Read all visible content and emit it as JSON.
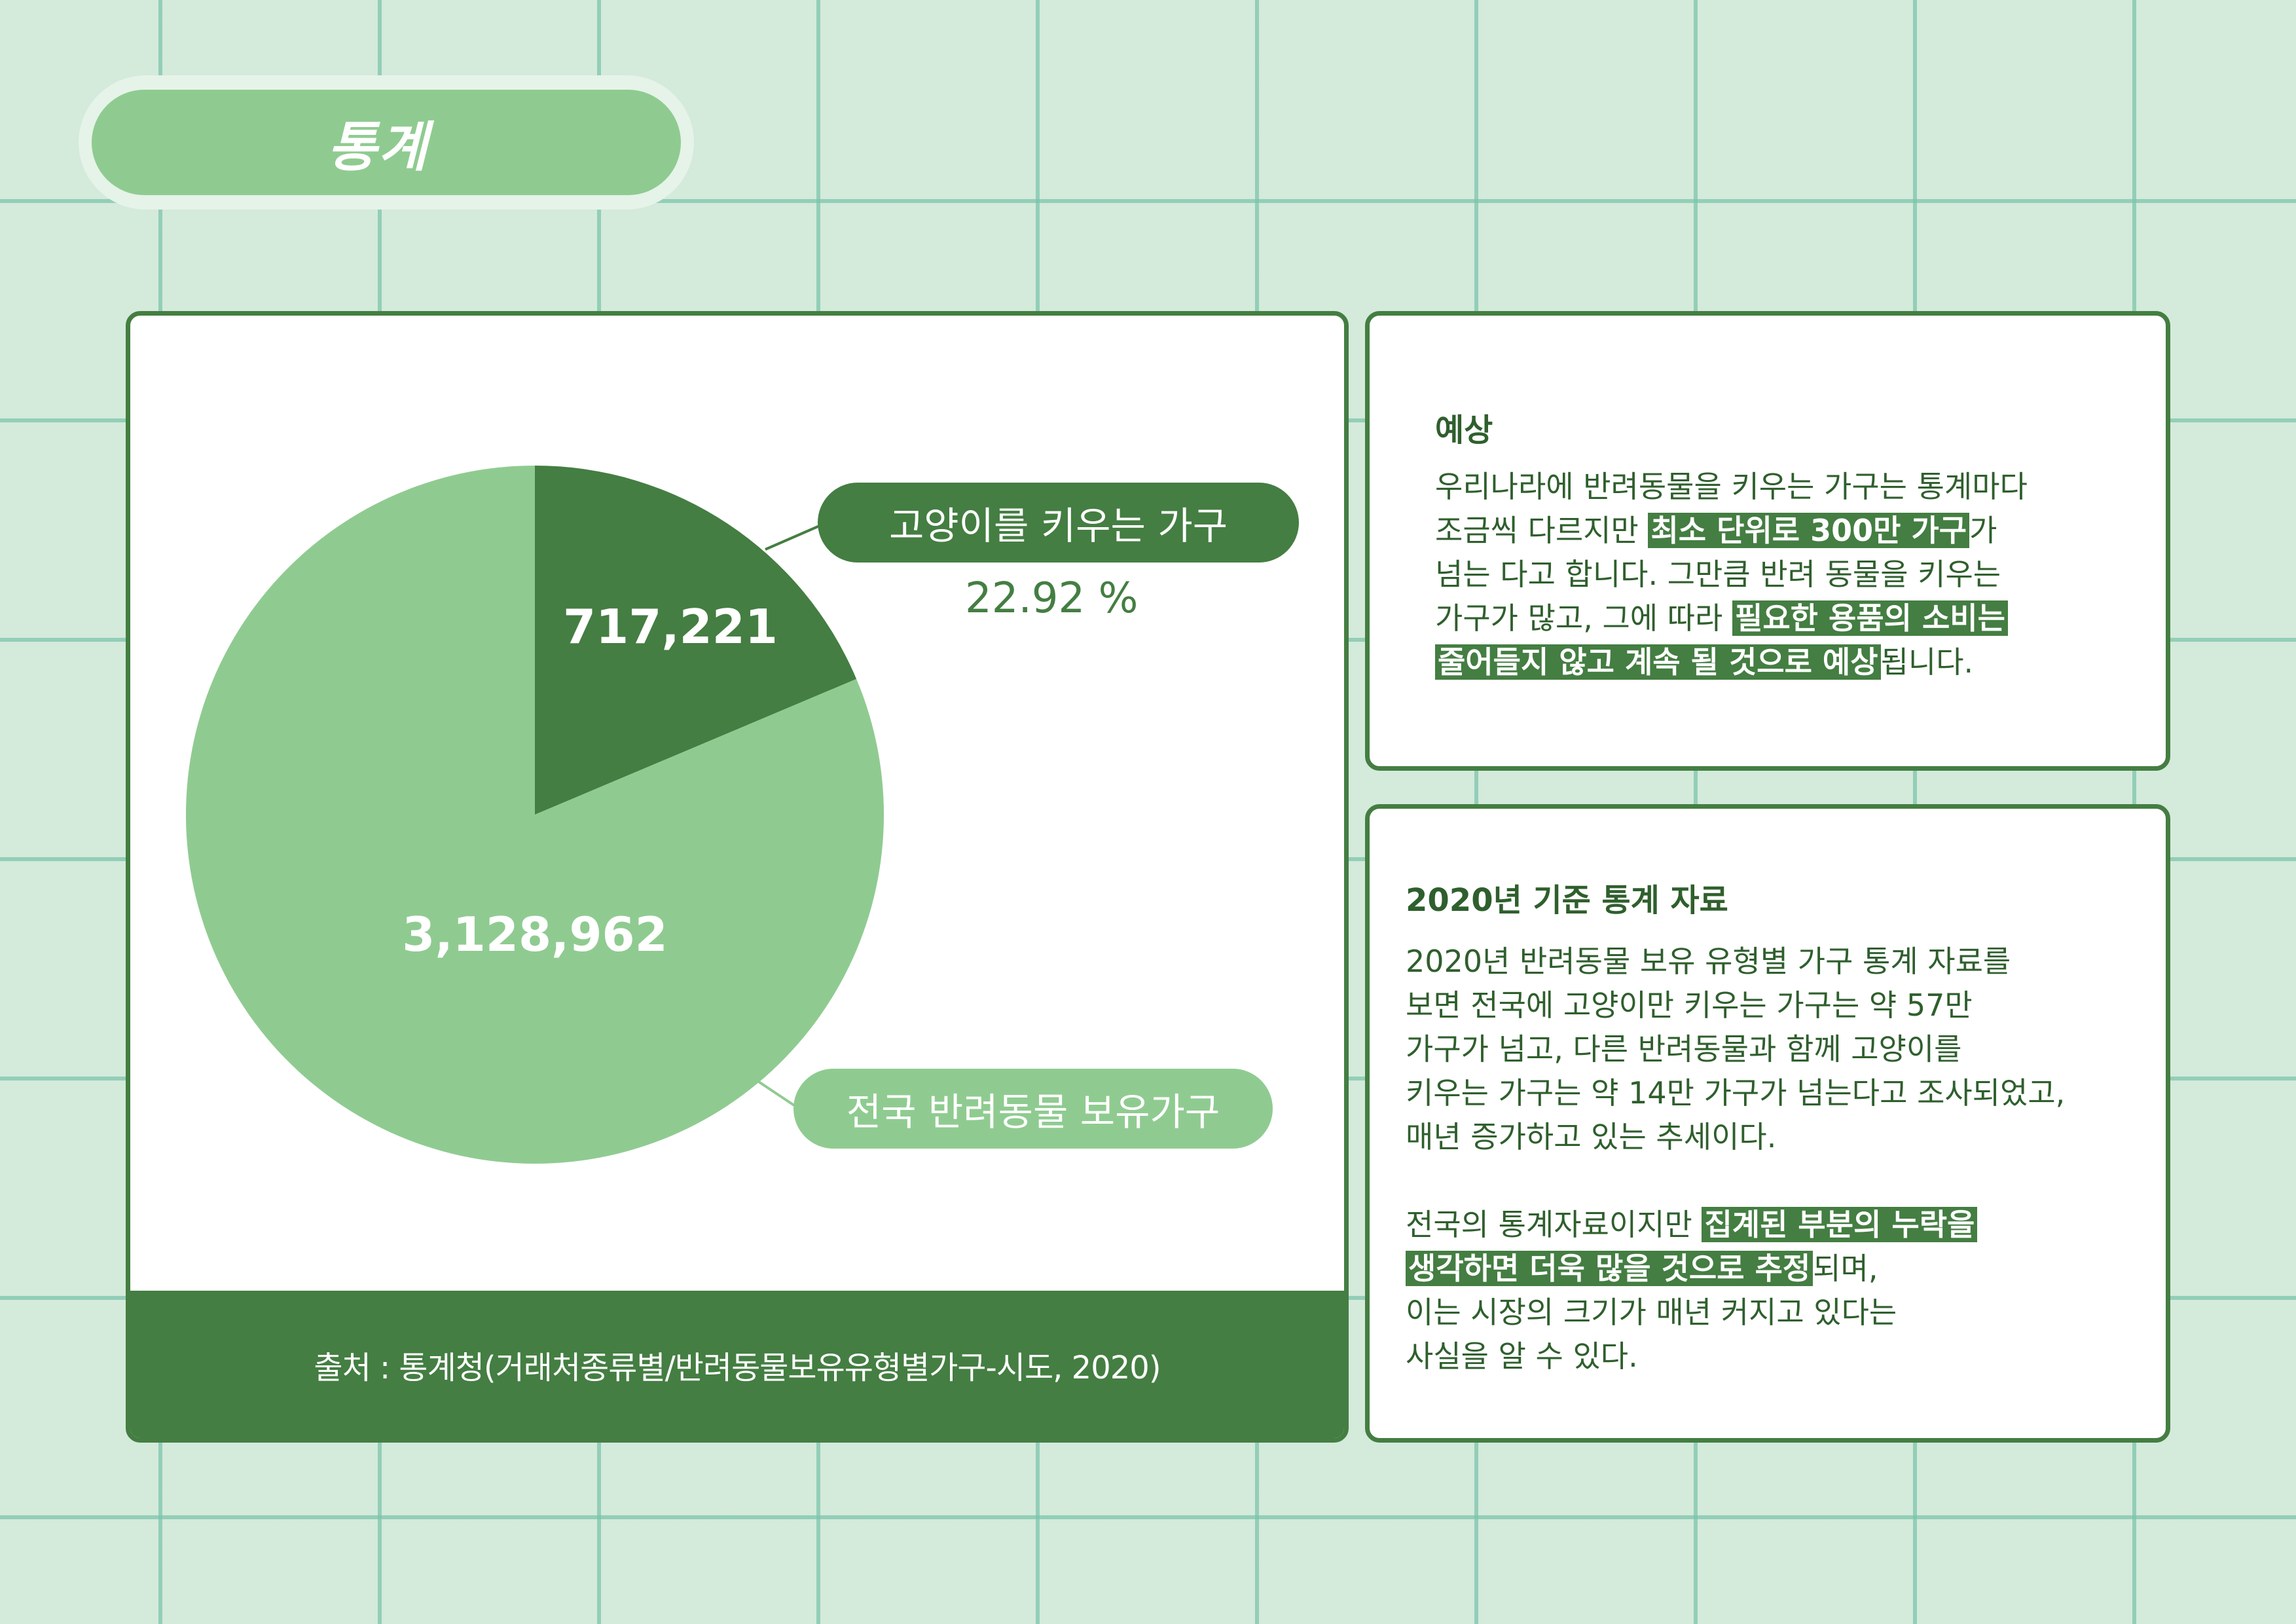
{
  "page": {
    "title": "통계"
  },
  "chart_data": {
    "type": "pie",
    "slices": [
      {
        "name": "고양이를 키우는 가구",
        "value": 717221,
        "value_label": "717,221",
        "percent_label": "22.92 %",
        "color": "#447e42"
      },
      {
        "name": "전국 반려동물 보유가구",
        "value": 3128962,
        "value_label": "3,128,962",
        "color": "#8fcb90"
      }
    ],
    "source": "출처 : 통계청(거래처종류별/반려동물보유유형별가구-시도, 2020)"
  },
  "forecast": {
    "title": "예상",
    "lines": [
      [
        {
          "t": "우리나라에 반려동물을 키우는 가구는 통계마다"
        }
      ],
      [
        {
          "t": "조금씩 다르지만 "
        },
        {
          "t": "최소 단위로 300만 가구",
          "hl": true
        },
        {
          "t": "가"
        }
      ],
      [
        {
          "t": "넘는 다고 합니다. 그만큼 반려 동물을 키우는"
        }
      ],
      [
        {
          "t": "가구가 많고, 그에 따라 "
        },
        {
          "t": "필요한 용품의 소비는",
          "hl": true
        }
      ],
      [
        {
          "t": "줄어들지 않고 계속 될 것으로 예상",
          "hl": true
        },
        {
          "t": "됩니다."
        }
      ]
    ]
  },
  "stats": {
    "title": "2020년 기준 통계 자료",
    "lines": [
      [
        {
          "t": "2020년 반려동물 보유 유형별 가구 통계 자료를"
        }
      ],
      [
        {
          "t": "보면 전국에 고양이만 키우는 가구는 약 57만"
        }
      ],
      [
        {
          "t": "가구가 넘고, 다른 반려동물과 함께 고양이를"
        }
      ],
      [
        {
          "t": "키우는 가구는 약 14만 가구가 넘는다고 조사되었고,"
        }
      ],
      [
        {
          "t": "매년 증가하고 있는 추세이다."
        }
      ],
      [
        {
          "t": ""
        }
      ],
      [
        {
          "t": "전국의 통계자료이지만 "
        },
        {
          "t": "집계된 부분의 누락을",
          "hl": true
        }
      ],
      [
        {
          "t": "생각하면 더욱 많을 것으로 추정",
          "hl": true
        },
        {
          "t": "되며,"
        }
      ],
      [
        {
          "t": "이는 시장의 크기가 매년 커지고 있다는"
        }
      ],
      [
        {
          "t": "사실을 알 수 있다."
        }
      ]
    ]
  }
}
